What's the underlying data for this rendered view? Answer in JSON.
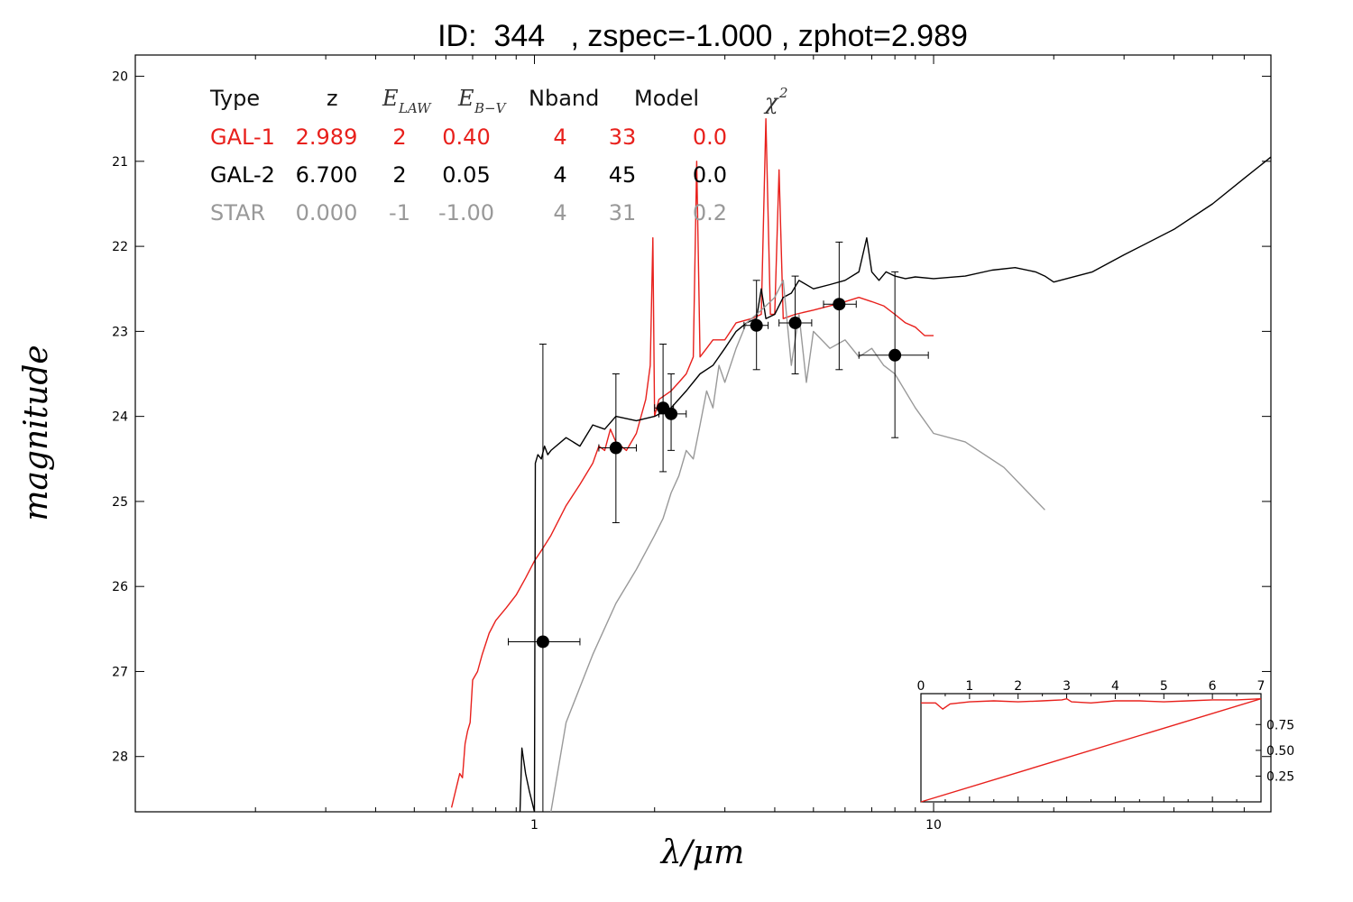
{
  "title": "ID:  344   , zspec=-1.000 , zphot=2.989",
  "chart_data": {
    "type": "line",
    "xlabel": "λ/μm",
    "ylabel": "magnitude",
    "x_scale": "log",
    "xlim": [
      0.1,
      70
    ],
    "ylim": [
      28.65,
      19.75
    ],
    "x_ticks": [
      1,
      10
    ],
    "y_ticks": [
      20,
      21,
      22,
      23,
      24,
      25,
      26,
      27,
      28
    ],
    "table": {
      "header": [
        "Type",
        "z",
        "E",
        "E",
        "Nband",
        "Model",
        "χ"
      ],
      "header_subscripts": [
        "",
        "",
        "LAW",
        "B−V",
        "",
        "",
        ""
      ],
      "header_superscripts": [
        "",
        "",
        "",
        "",
        "",
        "",
        "2"
      ],
      "rows": [
        {
          "type": "GAL-1",
          "z": "2.989",
          "elaw": "2",
          "ebv": "0.40",
          "nband": "4",
          "model": "33",
          "chi2": "0.0",
          "color": "#e8201c"
        },
        {
          "type": "GAL-2",
          "z": "6.700",
          "elaw": "2",
          "ebv": "0.05",
          "nband": "4",
          "model": "45",
          "chi2": "0.0",
          "color": "#000000"
        },
        {
          "type": "STAR",
          "z": "0.000",
          "elaw": "-1",
          "ebv": "-1.00",
          "nband": "4",
          "model": "31",
          "chi2": "0.2",
          "color": "#999999"
        }
      ]
    },
    "points": [
      {
        "x": 1.05,
        "y": 26.65,
        "xerr": [
          0.86,
          1.3
        ],
        "yerr": [
          23.15,
          28.65
        ]
      },
      {
        "x": 1.6,
        "y": 24.37,
        "xerr": [
          1.45,
          1.8
        ],
        "yerr": [
          23.5,
          25.25
        ]
      },
      {
        "x": 2.1,
        "y": 23.9,
        "xerr": [
          2.0,
          2.23
        ],
        "yerr": [
          23.15,
          24.65
        ]
      },
      {
        "x": 2.2,
        "y": 23.97,
        "xerr": [
          2.05,
          2.4
        ],
        "yerr": [
          23.5,
          24.4
        ]
      },
      {
        "x": 3.6,
        "y": 22.93,
        "xerr": [
          3.35,
          3.85
        ],
        "yerr": [
          22.4,
          23.45
        ]
      },
      {
        "x": 4.5,
        "y": 22.9,
        "xerr": [
          4.1,
          4.95
        ],
        "yerr": [
          22.35,
          23.5
        ]
      },
      {
        "x": 5.8,
        "y": 22.68,
        "xerr": [
          5.3,
          6.4
        ],
        "yerr": [
          21.95,
          23.45
        ]
      },
      {
        "x": 8.0,
        "y": 23.28,
        "xerr": [
          6.5,
          9.7
        ],
        "yerr": [
          22.3,
          24.25
        ]
      }
    ],
    "series": [
      {
        "color": "#e8201c",
        "x": [
          0.62,
          0.65,
          0.66,
          0.67,
          0.68,
          0.69,
          0.7,
          0.72,
          0.74,
          0.77,
          0.8,
          0.85,
          0.9,
          0.95,
          1.0,
          1.05,
          1.1,
          1.2,
          1.3,
          1.4,
          1.45,
          1.5,
          1.55,
          1.6,
          1.7,
          1.8,
          1.9,
          1.95,
          1.98,
          2.0,
          2.05,
          2.2,
          2.3,
          2.4,
          2.5,
          2.55,
          2.6,
          2.7,
          2.8,
          3.0,
          3.2,
          3.5,
          3.7,
          3.8,
          3.9,
          4.0,
          4.1,
          4.2,
          4.5,
          5.0,
          5.5,
          6.0,
          6.5,
          7.0,
          7.5,
          8.0,
          8.5,
          9.0,
          9.5,
          10.0
        ],
        "y": [
          28.6,
          28.2,
          28.25,
          27.85,
          27.7,
          27.6,
          27.1,
          27.0,
          26.8,
          26.55,
          26.4,
          26.25,
          26.1,
          25.9,
          25.7,
          25.55,
          25.4,
          25.05,
          24.8,
          24.55,
          24.35,
          24.4,
          24.15,
          24.3,
          24.4,
          24.2,
          23.8,
          23.4,
          21.9,
          24.0,
          23.8,
          23.7,
          23.6,
          23.5,
          23.3,
          21.0,
          23.3,
          23.2,
          23.1,
          23.1,
          22.9,
          22.85,
          22.8,
          20.5,
          22.8,
          22.8,
          21.1,
          22.85,
          22.8,
          22.75,
          22.7,
          22.65,
          22.6,
          22.65,
          22.7,
          22.8,
          22.9,
          22.95,
          23.05,
          23.05
        ]
      },
      {
        "color": "#000000",
        "x": [
          0.92,
          0.93,
          0.95,
          0.97,
          1.0,
          1.005,
          1.02,
          1.04,
          1.06,
          1.08,
          1.1,
          1.2,
          1.3,
          1.4,
          1.5,
          1.6,
          1.8,
          2.0,
          2.2,
          2.4,
          2.6,
          2.8,
          3.0,
          3.2,
          3.4,
          3.6,
          3.7,
          3.8,
          4.0,
          4.2,
          4.4,
          4.6,
          5.0,
          5.5,
          6.0,
          6.5,
          6.8,
          7.0,
          7.3,
          7.6,
          8.0,
          8.5,
          9.0,
          10.0,
          12.0,
          14.0,
          16.0,
          18.0,
          19.0,
          20.0,
          25.0,
          30.0,
          40.0,
          50.0,
          60.0,
          70.0
        ],
        "y": [
          28.65,
          27.9,
          28.2,
          28.4,
          28.65,
          24.55,
          24.45,
          24.5,
          24.35,
          24.45,
          24.4,
          24.25,
          24.35,
          24.1,
          24.15,
          24.0,
          24.05,
          24.0,
          23.9,
          23.7,
          23.5,
          23.4,
          23.2,
          23.0,
          22.9,
          22.85,
          22.5,
          22.85,
          22.8,
          22.6,
          22.55,
          22.4,
          22.5,
          22.45,
          22.4,
          22.3,
          21.9,
          22.3,
          22.4,
          22.3,
          22.35,
          22.38,
          22.36,
          22.38,
          22.35,
          22.28,
          22.25,
          22.3,
          22.35,
          22.42,
          22.3,
          22.1,
          21.8,
          21.5,
          21.2,
          20.95
        ]
      },
      {
        "color": "#999999",
        "x": [
          1.1,
          1.2,
          1.4,
          1.6,
          1.8,
          2.0,
          2.1,
          2.2,
          2.3,
          2.4,
          2.5,
          2.6,
          2.7,
          2.8,
          2.9,
          3.0,
          3.2,
          3.4,
          3.6,
          3.8,
          4.0,
          4.2,
          4.4,
          4.6,
          4.8,
          5.0,
          5.5,
          6.0,
          6.5,
          7.0,
          7.5,
          8.0,
          9.0,
          10.0,
          12.0,
          15.0,
          19.0
        ],
        "y": [
          28.65,
          27.6,
          26.8,
          26.2,
          25.8,
          25.4,
          25.2,
          24.9,
          24.7,
          24.4,
          24.5,
          24.1,
          23.7,
          23.9,
          23.4,
          23.6,
          23.2,
          22.9,
          22.8,
          22.7,
          22.6,
          22.4,
          23.4,
          22.8,
          23.6,
          23.0,
          23.2,
          23.1,
          23.3,
          23.2,
          23.4,
          23.5,
          23.9,
          24.2,
          24.3,
          24.6,
          25.1
        ]
      }
    ],
    "inset": {
      "xlim": [
        0,
        7
      ],
      "ylim": [
        0,
        1.05
      ],
      "x_ticks": [
        "0",
        "1",
        "2",
        "3",
        "4",
        "5",
        "6",
        "7"
      ],
      "y_ticks": [
        "0.25",
        "0.50",
        "0.75"
      ],
      "y_tick_values": [
        0.25,
        0.5,
        0.75
      ],
      "curve": {
        "x": [
          0,
          0.3,
          0.45,
          0.6,
          1.0,
          1.5,
          2.0,
          2.5,
          2.9,
          3.0,
          3.1,
          3.5,
          4.0,
          4.5,
          5.0,
          5.5,
          6.0,
          6.5,
          7.0
        ],
        "y": [
          0.96,
          0.96,
          0.9,
          0.95,
          0.97,
          0.98,
          0.97,
          0.98,
          0.99,
          1.0,
          0.97,
          0.96,
          0.98,
          0.98,
          0.97,
          0.98,
          0.99,
          0.99,
          1.0
        ]
      },
      "line": {
        "x": [
          0,
          7
        ],
        "y": [
          0.0,
          1.0
        ]
      },
      "color": "#e8201c"
    }
  }
}
